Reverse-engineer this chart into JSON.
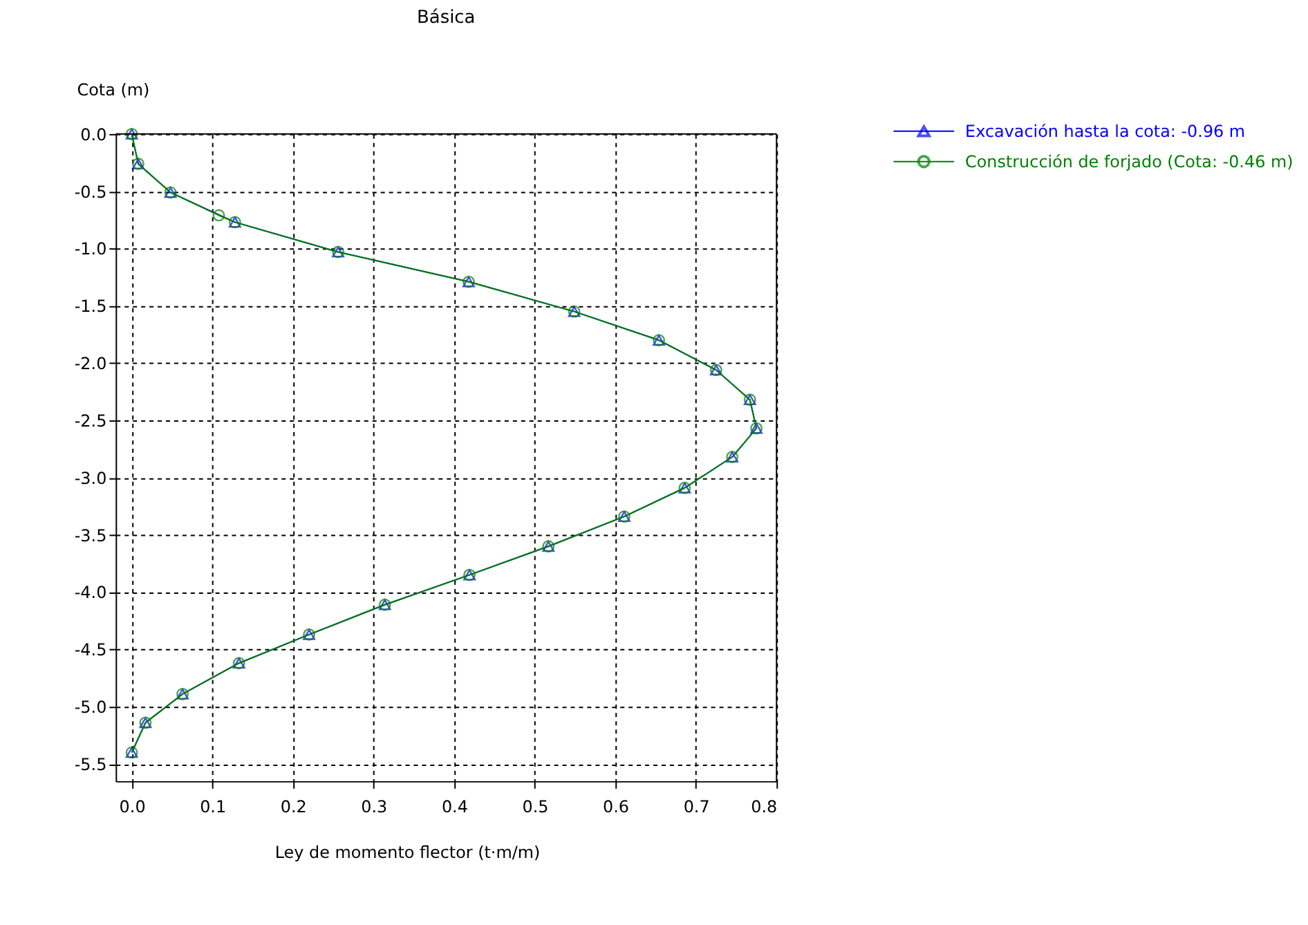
{
  "chart_data": {
    "type": "line",
    "title": "Básica",
    "xlabel": "Ley de momento flector (t·m/m)",
    "ylabel": "Cota (m)",
    "xlim": [
      -0.02,
      0.8
    ],
    "ylim": [
      -5.65,
      0
    ],
    "xticks": [
      {
        "value": 0,
        "label": "0.0"
      },
      0.1,
      0.2,
      0.3,
      0.4,
      0.5,
      0.6,
      0.7,
      0.8
    ],
    "yticks": [
      {
        "value": 0,
        "label": "0.0"
      },
      -0.5,
      {
        "value": -1,
        "label": "-1.0"
      },
      -1.5,
      {
        "value": -2,
        "label": "-2.0"
      },
      -2.5,
      {
        "value": -3,
        "label": "-3.0"
      },
      -3.5,
      {
        "value": -4,
        "label": "-4.0"
      },
      -4.5,
      {
        "value": -5,
        "label": "-5.0"
      },
      -5.5
    ],
    "grid": true,
    "legend": "right",
    "series": [
      {
        "name": "Excavación hasta la cota: -0.96 m",
        "color": "#0000ff",
        "marker": "triangle",
        "x": [
          0,
          0.008,
          0.048,
          0.128,
          0.256,
          0.418,
          0.549,
          0.654,
          0.725,
          0.767,
          0.775,
          0.745,
          0.686,
          0.611,
          0.517,
          0.419,
          0.314,
          0.22,
          0.133,
          0.063,
          0.017,
          0
        ],
        "values": [
          0,
          -0.26,
          -0.51,
          -0.77,
          -1.03,
          -1.29,
          -1.55,
          -1.8,
          -2.06,
          -2.32,
          -2.57,
          -2.82,
          -3.09,
          -3.34,
          -3.6,
          -3.85,
          -4.11,
          -4.37,
          -4.62,
          -4.89,
          -5.14,
          -5.4
        ]
      },
      {
        "name": "Construcción de forjado (Cota: -0.46 m)",
        "color": "#008000",
        "marker": "circle",
        "x": [
          0,
          0.008,
          0.048,
          0.108,
          0.128,
          0.256,
          0.418,
          0.549,
          0.654,
          0.725,
          0.767,
          0.775,
          0.745,
          0.686,
          0.611,
          0.517,
          0.419,
          0.314,
          0.22,
          0.133,
          0.063,
          0.017,
          0
        ],
        "values": [
          0,
          -0.26,
          -0.51,
          -0.71,
          -0.77,
          -1.03,
          -1.29,
          -1.55,
          -1.8,
          -2.06,
          -2.32,
          -2.57,
          -2.82,
          -3.09,
          -3.34,
          -3.6,
          -3.85,
          -4.11,
          -4.37,
          -4.62,
          -4.89,
          -5.14,
          -5.4
        ]
      }
    ]
  }
}
